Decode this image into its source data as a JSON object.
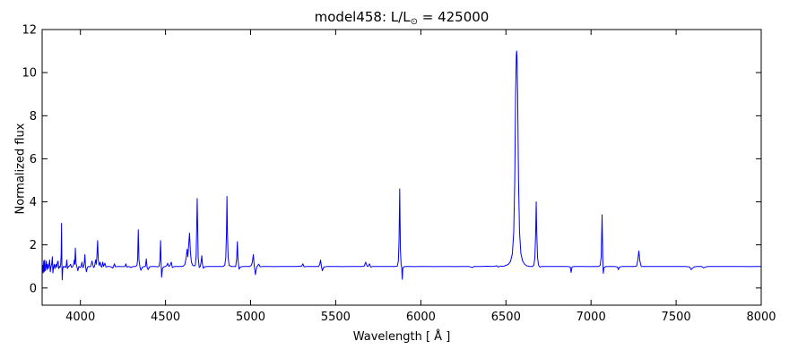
{
  "figure": {
    "title_parts": {
      "prefix": "model458: L/L",
      "sub": "⊙",
      "suffix": " = 425000"
    }
  },
  "chart_data": {
    "type": "line",
    "title": "model458: L/L⊙ = 425000",
    "xlabel": "Wavelength [ Å ]",
    "ylabel": "Normalized flux",
    "xlim": [
      3775,
      8000
    ],
    "ylim": [
      -0.8,
      12
    ],
    "xticks": [
      4000,
      4500,
      5000,
      5500,
      6000,
      6500,
      7000,
      7500,
      8000
    ],
    "yticks": [
      0,
      2,
      4,
      6,
      8,
      10,
      12
    ],
    "grid": false,
    "legend": "none",
    "line_color": "#0000ff",
    "background": "#ffffff",
    "series_name": "normalized-spectrum",
    "points": [
      [
        3775,
        0.85
      ],
      [
        3778,
        1.05
      ],
      [
        3781,
        0.7
      ],
      [
        3784,
        1.25
      ],
      [
        3787,
        0.75
      ],
      [
        3790,
        1.3
      ],
      [
        3793,
        0.8
      ],
      [
        3797,
        1.05
      ],
      [
        3800,
        1.25
      ],
      [
        3803,
        0.85
      ],
      [
        3807,
        1.1
      ],
      [
        3811,
        0.9
      ],
      [
        3815,
        1.05
      ],
      [
        3819,
        1.3
      ],
      [
        3823,
        0.75
      ],
      [
        3827,
        1.0
      ],
      [
        3831,
        1.1
      ],
      [
        3835,
        1.45
      ],
      [
        3838,
        0.7
      ],
      [
        3842,
        0.95
      ],
      [
        3846,
        1.1
      ],
      [
        3850,
        0.9
      ],
      [
        3854,
        1.05
      ],
      [
        3858,
        1.1
      ],
      [
        3861,
        0.95
      ],
      [
        3865,
        1.2
      ],
      [
        3869,
        1.25
      ],
      [
        3872,
        0.9
      ],
      [
        3876,
        1.0
      ],
      [
        3880,
        0.95
      ],
      [
        3884,
        1.1
      ],
      [
        3887,
        1.6
      ],
      [
        3889,
        3.0
      ],
      [
        3891,
        1.1
      ],
      [
        3893,
        0.38
      ],
      [
        3896,
        0.9
      ],
      [
        3900,
        1.0
      ],
      [
        3905,
        0.97
      ],
      [
        3910,
        1.0
      ],
      [
        3915,
        0.95
      ],
      [
        3920,
        1.3
      ],
      [
        3924,
        0.9
      ],
      [
        3930,
        1.0
      ],
      [
        3936,
        1.02
      ],
      [
        3942,
        1.1
      ],
      [
        3948,
        0.95
      ],
      [
        3955,
        1.0
      ],
      [
        3960,
        1.1
      ],
      [
        3964,
        1.3
      ],
      [
        3967,
        1.1
      ],
      [
        3970,
        1.85
      ],
      [
        3974,
        1.15
      ],
      [
        3979,
        1.0
      ],
      [
        3985,
        0.8
      ],
      [
        3991,
        1.0
      ],
      [
        3998,
        0.95
      ],
      [
        4004,
        1.0
      ],
      [
        4009,
        1.2
      ],
      [
        4013,
        0.95
      ],
      [
        4018,
        0.97
      ],
      [
        4023,
        1.2
      ],
      [
        4026,
        1.55
      ],
      [
        4030,
        1.0
      ],
      [
        4035,
        0.75
      ],
      [
        4041,
        0.95
      ],
      [
        4047,
        1.0
      ],
      [
        4054,
        0.98
      ],
      [
        4060,
        1.0
      ],
      [
        4068,
        1.25
      ],
      [
        4072,
        1.1
      ],
      [
        4077,
        0.95
      ],
      [
        4083,
        1.0
      ],
      [
        4089,
        1.3
      ],
      [
        4093,
        1.1
      ],
      [
        4097,
        1.5
      ],
      [
        4101,
        2.2
      ],
      [
        4105,
        1.3
      ],
      [
        4110,
        1.05
      ],
      [
        4116,
        1.2
      ],
      [
        4121,
        1.0
      ],
      [
        4126,
        0.97
      ],
      [
        4131,
        1.2
      ],
      [
        4136,
        1.0
      ],
      [
        4144,
        1.15
      ],
      [
        4150,
        0.97
      ],
      [
        4160,
        1.0
      ],
      [
        4172,
        1.0
      ],
      [
        4182,
        0.97
      ],
      [
        4190,
        0.92
      ],
      [
        4200,
        1.12
      ],
      [
        4206,
        0.98
      ],
      [
        4220,
        1.0
      ],
      [
        4240,
        0.99
      ],
      [
        4262,
        1.0
      ],
      [
        4267,
        1.12
      ],
      [
        4272,
        0.97
      ],
      [
        4285,
        1.0
      ],
      [
        4296,
        0.95
      ],
      [
        4310,
        1.0
      ],
      [
        4325,
        1.0
      ],
      [
        4332,
        1.05
      ],
      [
        4336,
        1.3
      ],
      [
        4340,
        2.7
      ],
      [
        4344,
        1.3
      ],
      [
        4350,
        0.95
      ],
      [
        4356,
        0.82
      ],
      [
        4364,
        0.97
      ],
      [
        4375,
        1.0
      ],
      [
        4382,
        1.0
      ],
      [
        4387,
        1.35
      ],
      [
        4392,
        0.95
      ],
      [
        4398,
        0.85
      ],
      [
        4406,
        0.98
      ],
      [
        4420,
        1.0
      ],
      [
        4440,
        1.0
      ],
      [
        4455,
        0.98
      ],
      [
        4462,
        1.0
      ],
      [
        4467,
        1.3
      ],
      [
        4471,
        2.2
      ],
      [
        4474,
        1.2
      ],
      [
        4477,
        0.5
      ],
      [
        4482,
        0.9
      ],
      [
        4490,
        0.98
      ],
      [
        4500,
        1.0
      ],
      [
        4508,
        1.05
      ],
      [
        4513,
        1.15
      ],
      [
        4519,
        1.0
      ],
      [
        4527,
        1.05
      ],
      [
        4534,
        1.2
      ],
      [
        4540,
        0.95
      ],
      [
        4552,
        1.0
      ],
      [
        4565,
        1.0
      ],
      [
        4580,
        1.0
      ],
      [
        4595,
        1.0
      ],
      [
        4605,
        1.02
      ],
      [
        4614,
        1.1
      ],
      [
        4621,
        1.4
      ],
      [
        4627,
        1.8
      ],
      [
        4631,
        1.45
      ],
      [
        4636,
        2.0
      ],
      [
        4641,
        2.55
      ],
      [
        4646,
        1.7
      ],
      [
        4652,
        1.2
      ],
      [
        4660,
        1.05
      ],
      [
        4668,
        1.02
      ],
      [
        4675,
        1.05
      ],
      [
        4680,
        1.5
      ],
      [
        4684,
        3.2
      ],
      [
        4686,
        4.15
      ],
      [
        4689,
        2.8
      ],
      [
        4692,
        1.4
      ],
      [
        4698,
        0.95
      ],
      [
        4704,
        1.0
      ],
      [
        4709,
        1.2
      ],
      [
        4713,
        1.5
      ],
      [
        4717,
        1.1
      ],
      [
        4722,
        0.92
      ],
      [
        4730,
        0.98
      ],
      [
        4745,
        1.0
      ],
      [
        4765,
        1.0
      ],
      [
        4790,
        1.0
      ],
      [
        4815,
        1.0
      ],
      [
        4838,
        1.0
      ],
      [
        4848,
        1.05
      ],
      [
        4854,
        1.4
      ],
      [
        4858,
        2.5
      ],
      [
        4861,
        4.25
      ],
      [
        4864,
        2.5
      ],
      [
        4868,
        1.4
      ],
      [
        4874,
        1.05
      ],
      [
        4885,
        1.0
      ],
      [
        4900,
        1.0
      ],
      [
        4912,
        1.0
      ],
      [
        4918,
        1.35
      ],
      [
        4922,
        2.15
      ],
      [
        4926,
        1.3
      ],
      [
        4932,
        0.88
      ],
      [
        4940,
        0.97
      ],
      [
        4955,
        1.0
      ],
      [
        4975,
        1.0
      ],
      [
        4995,
        1.0
      ],
      [
        5004,
        1.05
      ],
      [
        5010,
        1.2
      ],
      [
        5016,
        1.55
      ],
      [
        5021,
        1.05
      ],
      [
        5028,
        0.62
      ],
      [
        5035,
        0.95
      ],
      [
        5042,
        1.05
      ],
      [
        5048,
        1.1
      ],
      [
        5056,
        0.98
      ],
      [
        5070,
        1.0
      ],
      [
        5100,
        1.0
      ],
      [
        5140,
        0.99
      ],
      [
        5180,
        1.0
      ],
      [
        5230,
        1.0
      ],
      [
        5270,
        1.0
      ],
      [
        5300,
        1.02
      ],
      [
        5307,
        1.12
      ],
      [
        5314,
        0.98
      ],
      [
        5330,
        1.0
      ],
      [
        5360,
        1.0
      ],
      [
        5385,
        1.0
      ],
      [
        5400,
        1.0
      ],
      [
        5406,
        1.1
      ],
      [
        5411,
        1.3
      ],
      [
        5416,
        1.0
      ],
      [
        5421,
        0.8
      ],
      [
        5430,
        0.97
      ],
      [
        5450,
        1.0
      ],
      [
        5480,
        1.0
      ],
      [
        5510,
        1.0
      ],
      [
        5540,
        0.99
      ],
      [
        5570,
        1.0
      ],
      [
        5600,
        1.0
      ],
      [
        5630,
        1.0
      ],
      [
        5655,
        1.0
      ],
      [
        5668,
        1.02
      ],
      [
        5676,
        1.2
      ],
      [
        5684,
        1.02
      ],
      [
        5690,
        1.0
      ],
      [
        5698,
        1.12
      ],
      [
        5706,
        0.97
      ],
      [
        5718,
        1.0
      ],
      [
        5740,
        1.0
      ],
      [
        5770,
        1.0
      ],
      [
        5800,
        1.0
      ],
      [
        5830,
        1.0
      ],
      [
        5852,
        1.0
      ],
      [
        5862,
        1.02
      ],
      [
        5868,
        1.25
      ],
      [
        5872,
        2.2
      ],
      [
        5876,
        4.6
      ],
      [
        5880,
        1.8
      ],
      [
        5884,
        1.1
      ],
      [
        5888,
        0.95
      ],
      [
        5891,
        0.4
      ],
      [
        5894,
        0.9
      ],
      [
        5900,
        0.98
      ],
      [
        5915,
        1.0
      ],
      [
        5940,
        1.0
      ],
      [
        5970,
        0.99
      ],
      [
        6000,
        1.0
      ],
      [
        6040,
        1.0
      ],
      [
        6080,
        0.99
      ],
      [
        6120,
        1.0
      ],
      [
        6160,
        1.0
      ],
      [
        6200,
        0.99
      ],
      [
        6240,
        1.0
      ],
      [
        6280,
        1.0
      ],
      [
        6305,
        0.95
      ],
      [
        6312,
        1.0
      ],
      [
        6350,
        1.0
      ],
      [
        6390,
        1.01
      ],
      [
        6420,
        1.0
      ],
      [
        6448,
        1.03
      ],
      [
        6455,
        0.97
      ],
      [
        6470,
        1.02
      ],
      [
        6485,
        1.0
      ],
      [
        6500,
        1.05
      ],
      [
        6515,
        1.1
      ],
      [
        6528,
        1.25
      ],
      [
        6538,
        1.6
      ],
      [
        6546,
        2.6
      ],
      [
        6552,
        5.0
      ],
      [
        6557,
        9.0
      ],
      [
        6561,
        10.8
      ],
      [
        6563,
        11.0
      ],
      [
        6565,
        10.8
      ],
      [
        6569,
        9.0
      ],
      [
        6574,
        5.0
      ],
      [
        6580,
        2.6
      ],
      [
        6588,
        1.6
      ],
      [
        6598,
        1.25
      ],
      [
        6610,
        1.1
      ],
      [
        6622,
        1.03
      ],
      [
        6640,
        1.0
      ],
      [
        6655,
        1.0
      ],
      [
        6664,
        1.05
      ],
      [
        6670,
        1.4
      ],
      [
        6675,
        2.6
      ],
      [
        6678,
        4.0
      ],
      [
        6681,
        2.6
      ],
      [
        6686,
        1.4
      ],
      [
        6692,
        1.05
      ],
      [
        6700,
        0.97
      ],
      [
        6712,
        1.0
      ],
      [
        6740,
        1.0
      ],
      [
        6780,
        1.0
      ],
      [
        6820,
        1.0
      ],
      [
        6855,
        1.0
      ],
      [
        6878,
        0.98
      ],
      [
        6883,
        0.72
      ],
      [
        6888,
        0.97
      ],
      [
        6900,
        1.0
      ],
      [
        6930,
        1.0
      ],
      [
        6960,
        1.0
      ],
      [
        6990,
        0.99
      ],
      [
        7020,
        1.0
      ],
      [
        7045,
        1.0
      ],
      [
        7054,
        1.05
      ],
      [
        7060,
        1.45
      ],
      [
        7065,
        3.4
      ],
      [
        7069,
        1.5
      ],
      [
        7072,
        0.68
      ],
      [
        7077,
        0.95
      ],
      [
        7088,
        1.0
      ],
      [
        7110,
        1.0
      ],
      [
        7140,
        1.0
      ],
      [
        7155,
        0.97
      ],
      [
        7161,
        0.85
      ],
      [
        7167,
        0.97
      ],
      [
        7185,
        1.0
      ],
      [
        7220,
        1.0
      ],
      [
        7255,
        1.0
      ],
      [
        7268,
        1.02
      ],
      [
        7275,
        1.3
      ],
      [
        7281,
        1.72
      ],
      [
        7287,
        1.25
      ],
      [
        7295,
        1.0
      ],
      [
        7320,
        1.0
      ],
      [
        7360,
        1.0
      ],
      [
        7400,
        1.0
      ],
      [
        7440,
        1.0
      ],
      [
        7480,
        1.0
      ],
      [
        7520,
        1.0
      ],
      [
        7555,
        1.0
      ],
      [
        7580,
        0.97
      ],
      [
        7588,
        0.85
      ],
      [
        7596,
        0.92
      ],
      [
        7604,
        0.97
      ],
      [
        7620,
        1.0
      ],
      [
        7650,
        1.0
      ],
      [
        7662,
        0.93
      ],
      [
        7670,
        0.97
      ],
      [
        7690,
        1.0
      ],
      [
        7730,
        1.0
      ],
      [
        7770,
        1.0
      ],
      [
        7810,
        1.0
      ],
      [
        7850,
        1.0
      ],
      [
        7890,
        1.0
      ],
      [
        7930,
        0.99
      ],
      [
        7965,
        1.0
      ],
      [
        8000,
        1.0
      ]
    ]
  }
}
